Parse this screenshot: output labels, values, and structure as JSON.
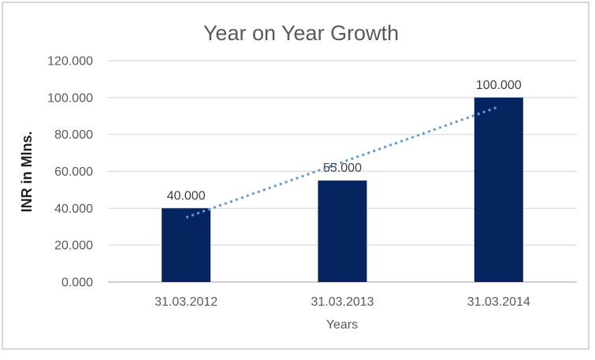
{
  "chart_data": {
    "type": "bar",
    "title": "Year on Year Growth",
    "xlabel": "Years",
    "ylabel": "INR in Mlns.",
    "categories": [
      "31.03.2012",
      "31.03.2013",
      "31.03.2014"
    ],
    "values": [
      40,
      55,
      100
    ],
    "data_labels": [
      "40.000",
      "55.000",
      "100.000"
    ],
    "ylim": [
      0,
      120
    ],
    "ytick_step": 20,
    "ytick_labels": [
      "0.000",
      "20.000",
      "40.000",
      "60.000",
      "80.000",
      "100.000",
      "120.000"
    ],
    "grid": true,
    "legend": "none",
    "trendline": {
      "type": "linear",
      "style": "dotted",
      "fitted_values": [
        35,
        65,
        95
      ]
    },
    "colors": {
      "bar": "#06245f",
      "trendline": "#5b9bd5",
      "gridline": "#d9d9d9",
      "axis_line": "#bfbfbf",
      "chart_border": "#d6d6d6",
      "background": "#ffffff",
      "title_text": "#595959",
      "tick_text": "#595959",
      "data_label_text": "#404040",
      "axis_title_text": "#595959",
      "y_axis_title_text": "#1f1f1f"
    }
  }
}
